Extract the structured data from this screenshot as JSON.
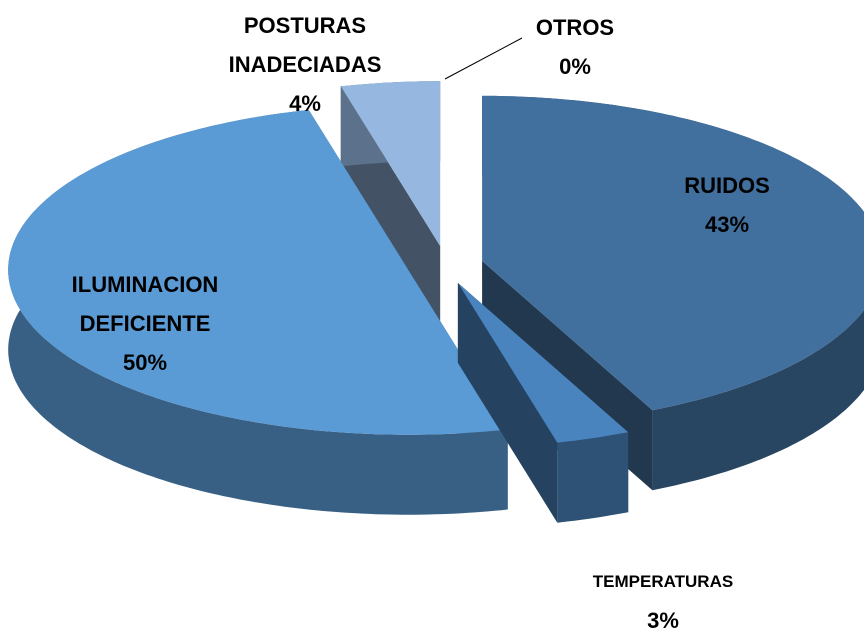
{
  "chart_data": {
    "type": "pie",
    "categories": [
      "RUIDOS",
      "TEMPERATURAS",
      "ILUMINACION DEFICIENTE",
      "POSTURAS INADECIADAS",
      "OTROS"
    ],
    "values": [
      43,
      3,
      50,
      4,
      0
    ],
    "value_labels": [
      "43%",
      "3%",
      "50%",
      "4%",
      "0%"
    ],
    "colors": [
      "#41709e",
      "#4a84bf",
      "#5b9bd5",
      "#95b7e0",
      "#a5a5a5"
    ]
  }
}
